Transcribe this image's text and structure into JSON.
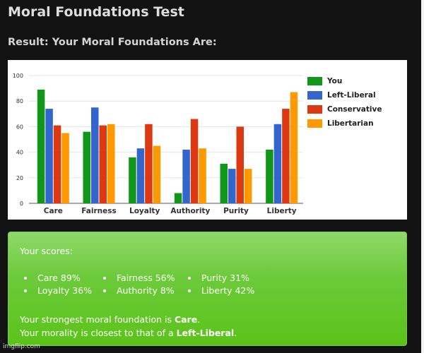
{
  "page": {
    "title": "Moral Foundations Test",
    "result_heading": "Result: Your Moral Foundations Are:"
  },
  "chart_data": {
    "type": "bar",
    "categories": [
      "Care",
      "Fairness",
      "Loyalty",
      "Authority",
      "Purity",
      "Liberty"
    ],
    "series": [
      {
        "name": "You",
        "color": "#109618",
        "values": [
          89,
          56,
          36,
          8,
          31,
          42
        ]
      },
      {
        "name": "Left-Liberal",
        "color": "#3366cc",
        "values": [
          74,
          75,
          43,
          42,
          27,
          62
        ]
      },
      {
        "name": "Conservative",
        "color": "#dc3912",
        "values": [
          61,
          61,
          62,
          66,
          60,
          74
        ]
      },
      {
        "name": "Libertarian",
        "color": "#ff9900",
        "values": [
          55,
          62,
          45,
          43,
          27,
          87
        ]
      }
    ],
    "yticks": [
      "0",
      "20",
      "40",
      "60",
      "80",
      "100"
    ],
    "ylim": [
      0,
      100
    ],
    "grid": true,
    "legend": "right"
  },
  "scores": {
    "label": "Your scores:",
    "items": [
      "Care 89%",
      "Fairness 56%",
      "Purity 31%",
      "Loyalty 36%",
      "Authority 8%",
      "Liberty 42%"
    ],
    "strongest_prefix": "Your strongest moral foundation is ",
    "strongest_value": "Care",
    "strongest_suffix": ".",
    "closest_prefix": "Your morality is closest to that of a ",
    "closest_value": "Left-Liberal",
    "closest_suffix": "."
  },
  "watermark": "imgflip.com"
}
